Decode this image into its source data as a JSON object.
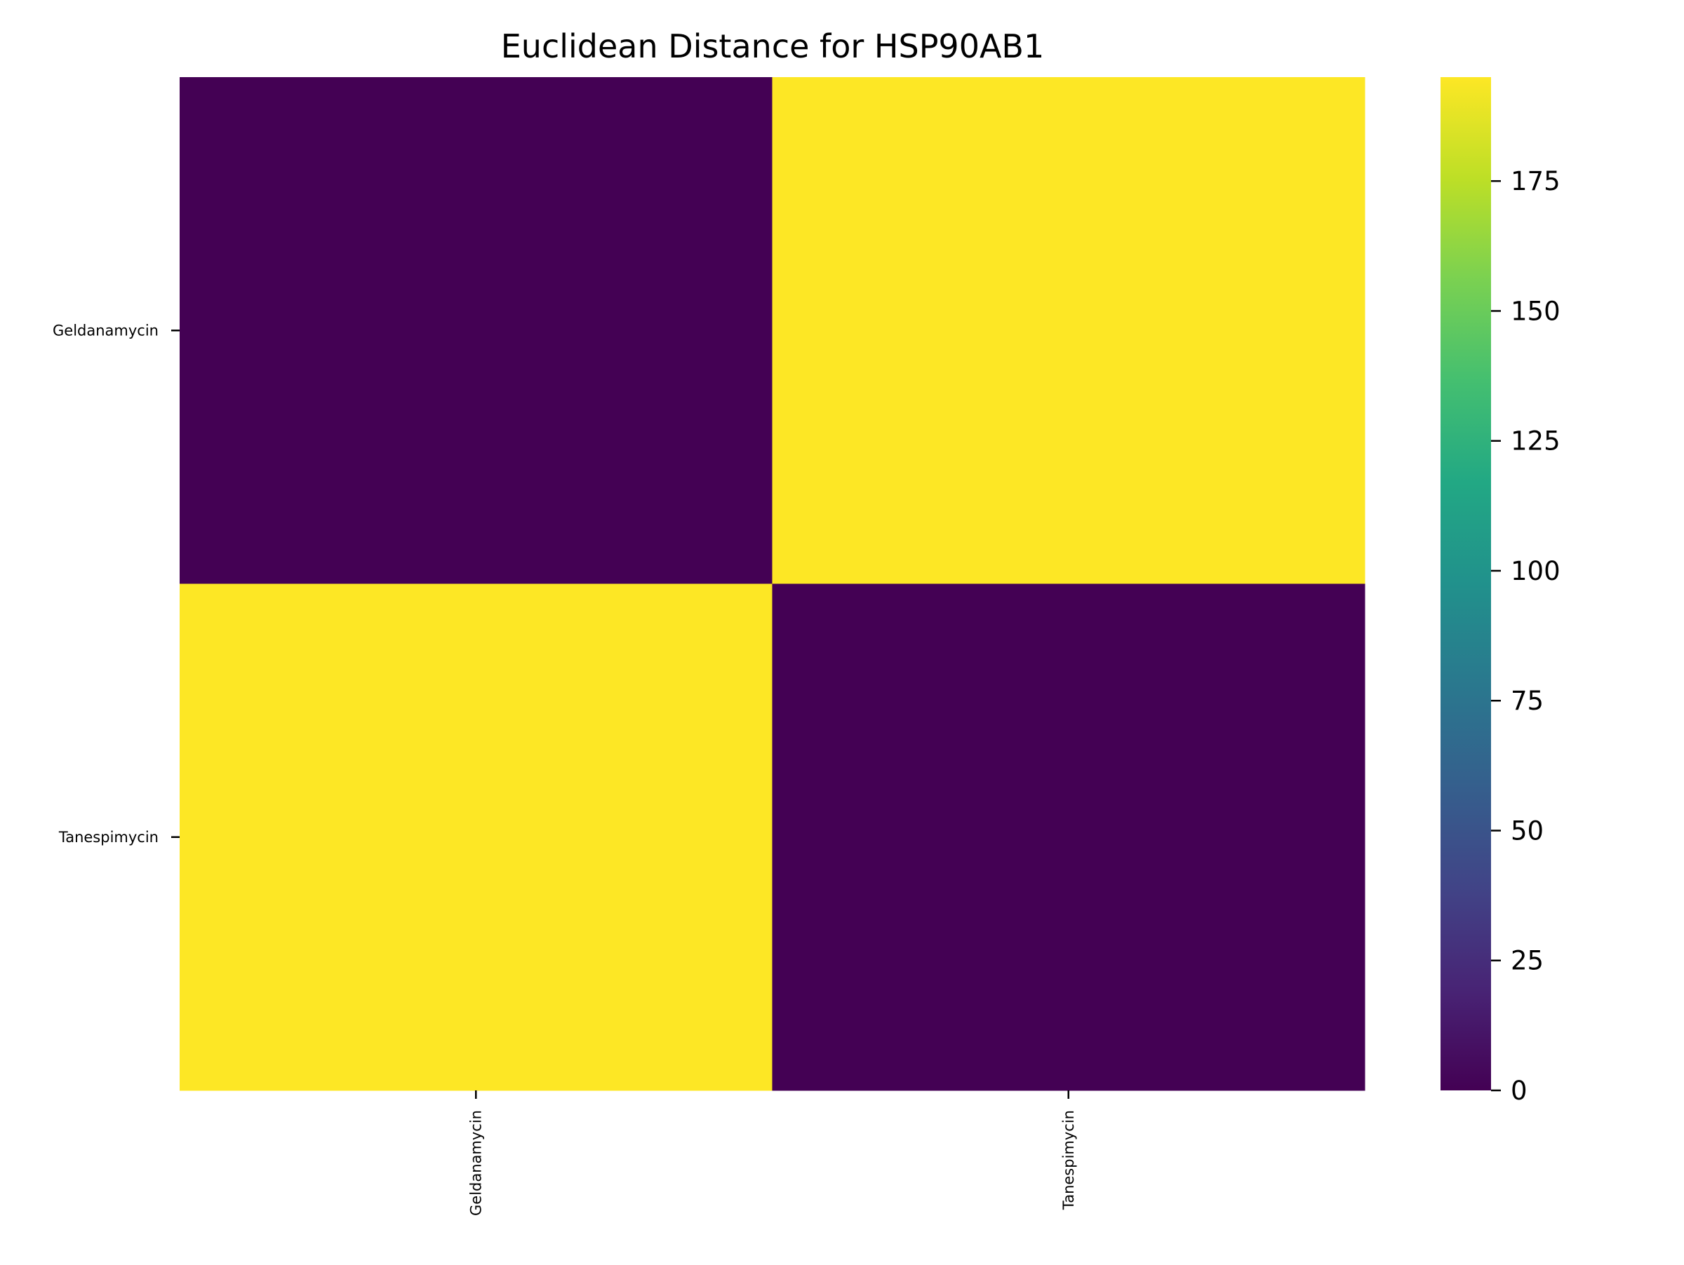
{
  "chart_data": {
    "type": "heatmap",
    "title": "Euclidean Distance for HSP90AB1",
    "rows": [
      "Geldanamycin",
      "Tanespimycin"
    ],
    "columns": [
      "Geldanamycin",
      "Tanespimycin"
    ],
    "values": [
      [
        0,
        195
      ],
      [
        195,
        0
      ]
    ],
    "colormap": "viridis",
    "colorbar": {
      "vmin": 0,
      "vmax": 195,
      "ticks": [
        0,
        25,
        50,
        75,
        100,
        125,
        150,
        175
      ]
    },
    "colors": {
      "low": "#440154",
      "high": "#fde725"
    }
  }
}
